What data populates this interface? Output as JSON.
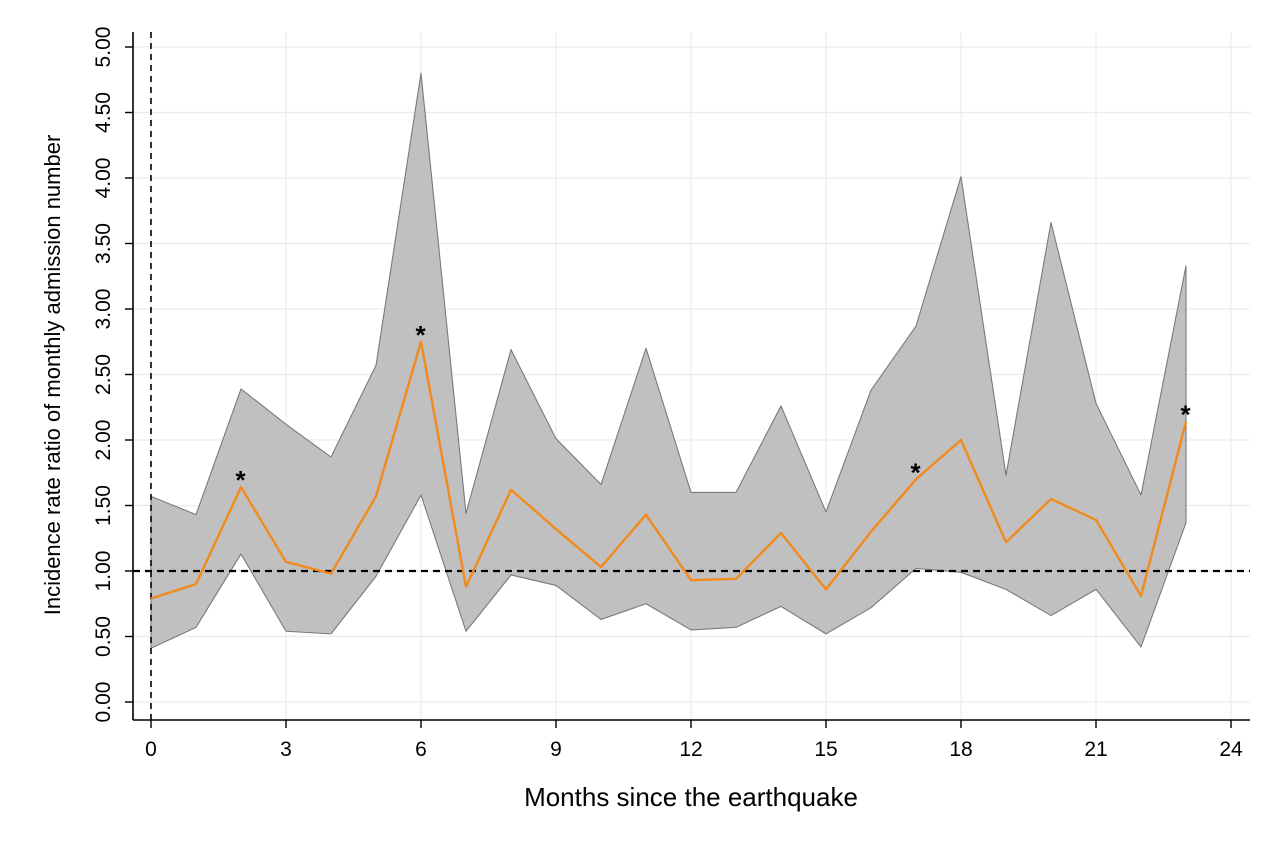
{
  "chart_data": {
    "type": "line",
    "title": "",
    "xlabel": "Months since the earthquake",
    "ylabel": "Incidence rate ratio of monthly admission number",
    "xlim": [
      -0.3,
      24.4
    ],
    "ylim": [
      -0.13,
      5.1
    ],
    "x_ticks": [
      0,
      3,
      6,
      9,
      12,
      15,
      18,
      21,
      24
    ],
    "x_tick_labels": [
      "0",
      "3",
      "6",
      "9",
      "12",
      "15",
      "18",
      "21",
      "24"
    ],
    "y_ticks": [
      0,
      0.5,
      1,
      1.5,
      2,
      2.5,
      3,
      3.5,
      4,
      4.5,
      5
    ],
    "y_tick_labels": [
      "0.00",
      "0.50",
      "1.00",
      "1.50",
      "2.00",
      "2.50",
      "3.00",
      "3.50",
      "4.00",
      "4.50",
      "5.00"
    ],
    "grid": true,
    "reference_line_y": 1,
    "reference_line_x": 0,
    "x": [
      0,
      1,
      2,
      3,
      4,
      5,
      6,
      7,
      8,
      9,
      10,
      11,
      12,
      13,
      14,
      15,
      16,
      17,
      18,
      19,
      20,
      21,
      22,
      23
    ],
    "series": [
      {
        "values": [
          0.79,
          0.9,
          1.64,
          1.07,
          0.98,
          1.57,
          2.75,
          0.88,
          1.62,
          1.32,
          1.03,
          1.43,
          0.93,
          0.94,
          1.29,
          0.86,
          1.3,
          1.7,
          2.0,
          1.22,
          1.55,
          1.39,
          0.81,
          2.14
        ],
        "color": "#f28a1c"
      }
    ],
    "ci_upper": [
      1.57,
      1.43,
      2.39,
      2.12,
      1.87,
      2.57,
      4.8,
      1.44,
      2.69,
      2.01,
      1.66,
      2.7,
      1.6,
      1.6,
      2.26,
      1.45,
      2.38,
      2.87,
      4.01,
      1.73,
      3.66,
      2.28,
      1.58,
      3.33
    ],
    "ci_lower": [
      0.41,
      0.57,
      1.13,
      0.54,
      0.52,
      0.96,
      1.58,
      0.54,
      0.97,
      0.89,
      0.63,
      0.75,
      0.55,
      0.57,
      0.73,
      0.52,
      0.72,
      1.02,
      0.99,
      0.86,
      0.66,
      0.86,
      0.42,
      1.37
    ],
    "significant_marker": "*",
    "significant_months": [
      2,
      6,
      17,
      23
    ],
    "band_color": "#c0c0c0",
    "line_color": "#f28a1c"
  }
}
